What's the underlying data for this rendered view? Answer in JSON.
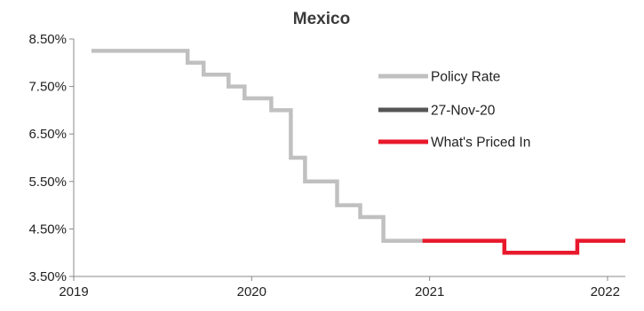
{
  "chart_data": {
    "type": "line",
    "title": "Mexico",
    "xlabel": "",
    "ylabel": "",
    "x_ticks": [
      {
        "value": 2019,
        "label": "2019"
      },
      {
        "value": 2020,
        "label": "2020"
      },
      {
        "value": 2021,
        "label": "2021"
      },
      {
        "value": 2022,
        "label": "2022"
      }
    ],
    "y_ticks": [
      {
        "value": 3.5,
        "label": "3.50%"
      },
      {
        "value": 4.5,
        "label": "4.50%"
      },
      {
        "value": 5.5,
        "label": "5.50%"
      },
      {
        "value": 6.5,
        "label": "6.50%"
      },
      {
        "value": 7.5,
        "label": "7.50%"
      },
      {
        "value": 8.5,
        "label": "8.50%"
      }
    ],
    "xlim": [
      2019,
      2022.1
    ],
    "ylim": [
      3.5,
      8.5
    ],
    "grid": false,
    "legend_position": "right",
    "series": [
      {
        "name": "Policy Rate",
        "color": "#c0c0c0",
        "step": true,
        "points": [
          {
            "x": 2019.1,
            "y": 8.25
          },
          {
            "x": 2019.64,
            "y": 8.0
          },
          {
            "x": 2019.73,
            "y": 7.75
          },
          {
            "x": 2019.87,
            "y": 7.5
          },
          {
            "x": 2019.96,
            "y": 7.25
          },
          {
            "x": 2020.11,
            "y": 7.0
          },
          {
            "x": 2020.22,
            "y": 6.0
          },
          {
            "x": 2020.3,
            "y": 5.5
          },
          {
            "x": 2020.48,
            "y": 5.0
          },
          {
            "x": 2020.61,
            "y": 4.75
          },
          {
            "x": 2020.74,
            "y": 4.25
          },
          {
            "x": 2020.96,
            "y": 4.25
          }
        ]
      },
      {
        "name": "27-Nov-20",
        "color": "#555555",
        "step": true,
        "points": []
      },
      {
        "name": "What's Priced In",
        "color": "#e8192c",
        "step": true,
        "points": [
          {
            "x": 2020.96,
            "y": 4.25
          },
          {
            "x": 2021.42,
            "y": 4.0
          },
          {
            "x": 2021.83,
            "y": 4.25
          },
          {
            "x": 2022.1,
            "y": 4.25
          }
        ]
      }
    ]
  }
}
